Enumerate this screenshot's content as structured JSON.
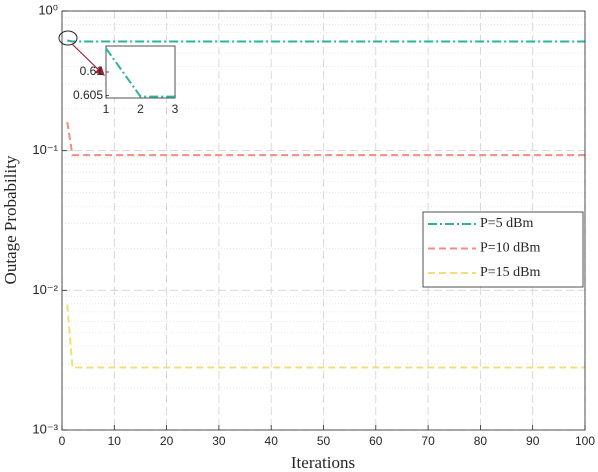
{
  "chart_data": {
    "type": "line",
    "xlabel": "Iterations",
    "ylabel": "Outage Probability",
    "x": [
      1,
      2,
      3,
      100
    ],
    "series": [
      {
        "name": "P=5 dBm",
        "color": "#2bb39b",
        "linestyle": "dashdot",
        "values": [
          0.615,
          0.6048,
          0.6048,
          0.6048
        ]
      },
      {
        "name": "P=10 dBm",
        "color": "#f28c82",
        "linestyle": "dashed",
        "values": [
          0.16,
          0.093,
          0.093,
          0.093
        ]
      },
      {
        "name": "P=15 dBm",
        "color": "#f5dc7a",
        "linestyle": "dashed",
        "values": [
          0.0079,
          0.0028,
          0.0028,
          0.0028
        ]
      }
    ],
    "xlim": [
      0,
      100
    ],
    "xticks": [
      0,
      10,
      20,
      30,
      40,
      50,
      60,
      70,
      80,
      90,
      100
    ],
    "ylim": [
      0.001,
      1
    ],
    "log_y": true,
    "grid": true,
    "legend": "right",
    "yticks": [
      {
        "value": 0.001,
        "label": "10⁻³"
      },
      {
        "value": 0.01,
        "label": "10⁻²"
      },
      {
        "value": 0.1,
        "label": "10⁻¹"
      },
      {
        "value": 1,
        "label": "10⁰"
      }
    ],
    "inset": {
      "series": 0,
      "xlim": [
        1,
        3
      ],
      "xticks": [
        1,
        2,
        3
      ],
      "ylim": [
        0.6045,
        0.6155
      ],
      "yticks": [
        0.605,
        0.61
      ]
    }
  }
}
